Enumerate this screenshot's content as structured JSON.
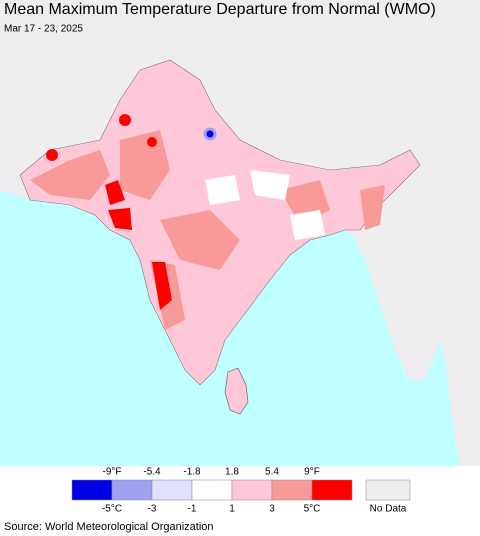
{
  "header": {
    "title": "Mean Maximum Temperature Departure from Normal (WMO)",
    "subtitle": "Mar 17 - 23, 2025"
  },
  "legend": {
    "colors": [
      "#0000e6",
      "#a0a0f0",
      "#e0e0fa",
      "#ffffff",
      "#ffc8d8",
      "#f99a9a",
      "#ff0000"
    ],
    "fahrenheit_labels": [
      "-9°F",
      "-5.4",
      "-1.8",
      "1.8",
      "5.4",
      "9°F"
    ],
    "celsius_labels": [
      "-5°C",
      "-3",
      "-1",
      "1",
      "3",
      "5°C"
    ],
    "no_data": {
      "label": "No Data",
      "color": "#f0edf0"
    }
  },
  "footer": {
    "source": "Source: World Meteorological Organization"
  }
}
